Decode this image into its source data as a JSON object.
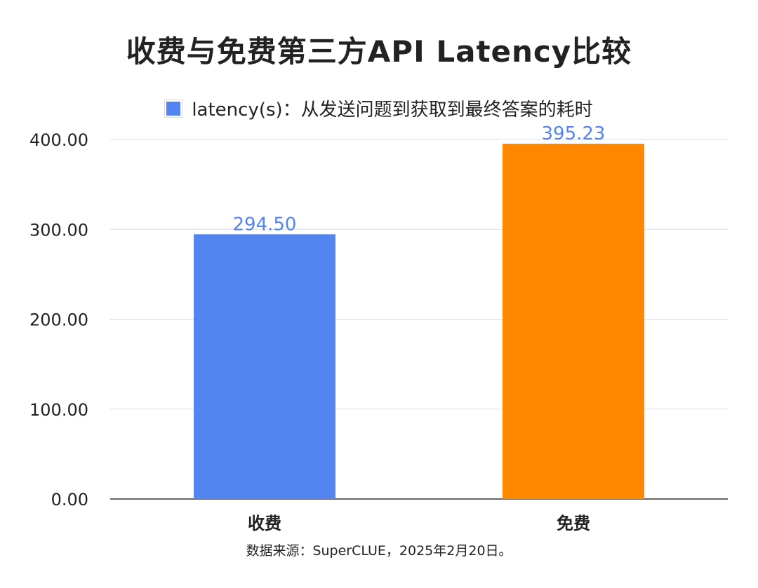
{
  "chart_data": {
    "type": "bar",
    "title": "收费与免费第三方API Latency比较",
    "categories": [
      "收费",
      "免费"
    ],
    "values": [
      294.5,
      395.23
    ],
    "value_labels": [
      "294.50",
      "395.23"
    ],
    "series": [
      {
        "name": "latency(s)：从发送问题到获取到最终答案的耗时",
        "values": [
          294.5,
          395.23
        ]
      }
    ],
    "bar_colors": [
      "#5384f0",
      "#ff8800"
    ],
    "legend_color": "#5384f0",
    "data_label_color": "#5384f0",
    "y_ticks": [
      "0.00",
      "100.00",
      "200.00",
      "300.00",
      "400.00"
    ],
    "ylim": [
      0,
      400
    ],
    "grid": true,
    "legend": "top-center",
    "xlabel": "",
    "ylabel": ""
  },
  "footer": {
    "source": "数据来源：SuperCLUE，2025年2月20日。"
  }
}
